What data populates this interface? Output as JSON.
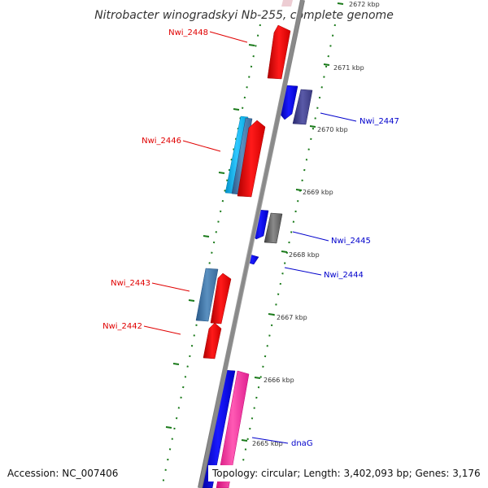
{
  "title": "Nitrobacter winogradskyi Nb-255, complete genome",
  "footer": {
    "accession": "Accession: NC_007406",
    "topology": "Topology: circular; Length: 3,402,093 bp; Genes: 3,176"
  },
  "colors": {
    "backbone": "#8a8a8a",
    "tick": "#1a7a1a",
    "left_labels": "#e00000",
    "right_labels": "#0000cc"
  },
  "ticks": [
    "2672 kbp",
    "2671 kbp",
    "2670 kbp",
    "2669 kbp",
    "2668 kbp",
    "2667 kbp",
    "2666 kbp",
    "2665 kbp"
  ],
  "genes": [
    {
      "label": "Nwi_2448",
      "side": "left",
      "color": "#ff0000"
    },
    {
      "label": "Nwi_2447",
      "side": "right",
      "color": "#0000ff"
    },
    {
      "label": "Nwi_2446",
      "side": "left",
      "color": "#ff0000"
    },
    {
      "label": "Nwi_2445",
      "side": "right",
      "color": "#0000ff"
    },
    {
      "label": "Nwi_2444",
      "side": "right",
      "color": "#0000ff"
    },
    {
      "label": "Nwi_2443",
      "side": "left",
      "color": "#ff0000"
    },
    {
      "label": "Nwi_2442",
      "side": "left",
      "color": "#ff0000"
    },
    {
      "label": "dnaG",
      "side": "right",
      "color": "#0000ff"
    }
  ]
}
